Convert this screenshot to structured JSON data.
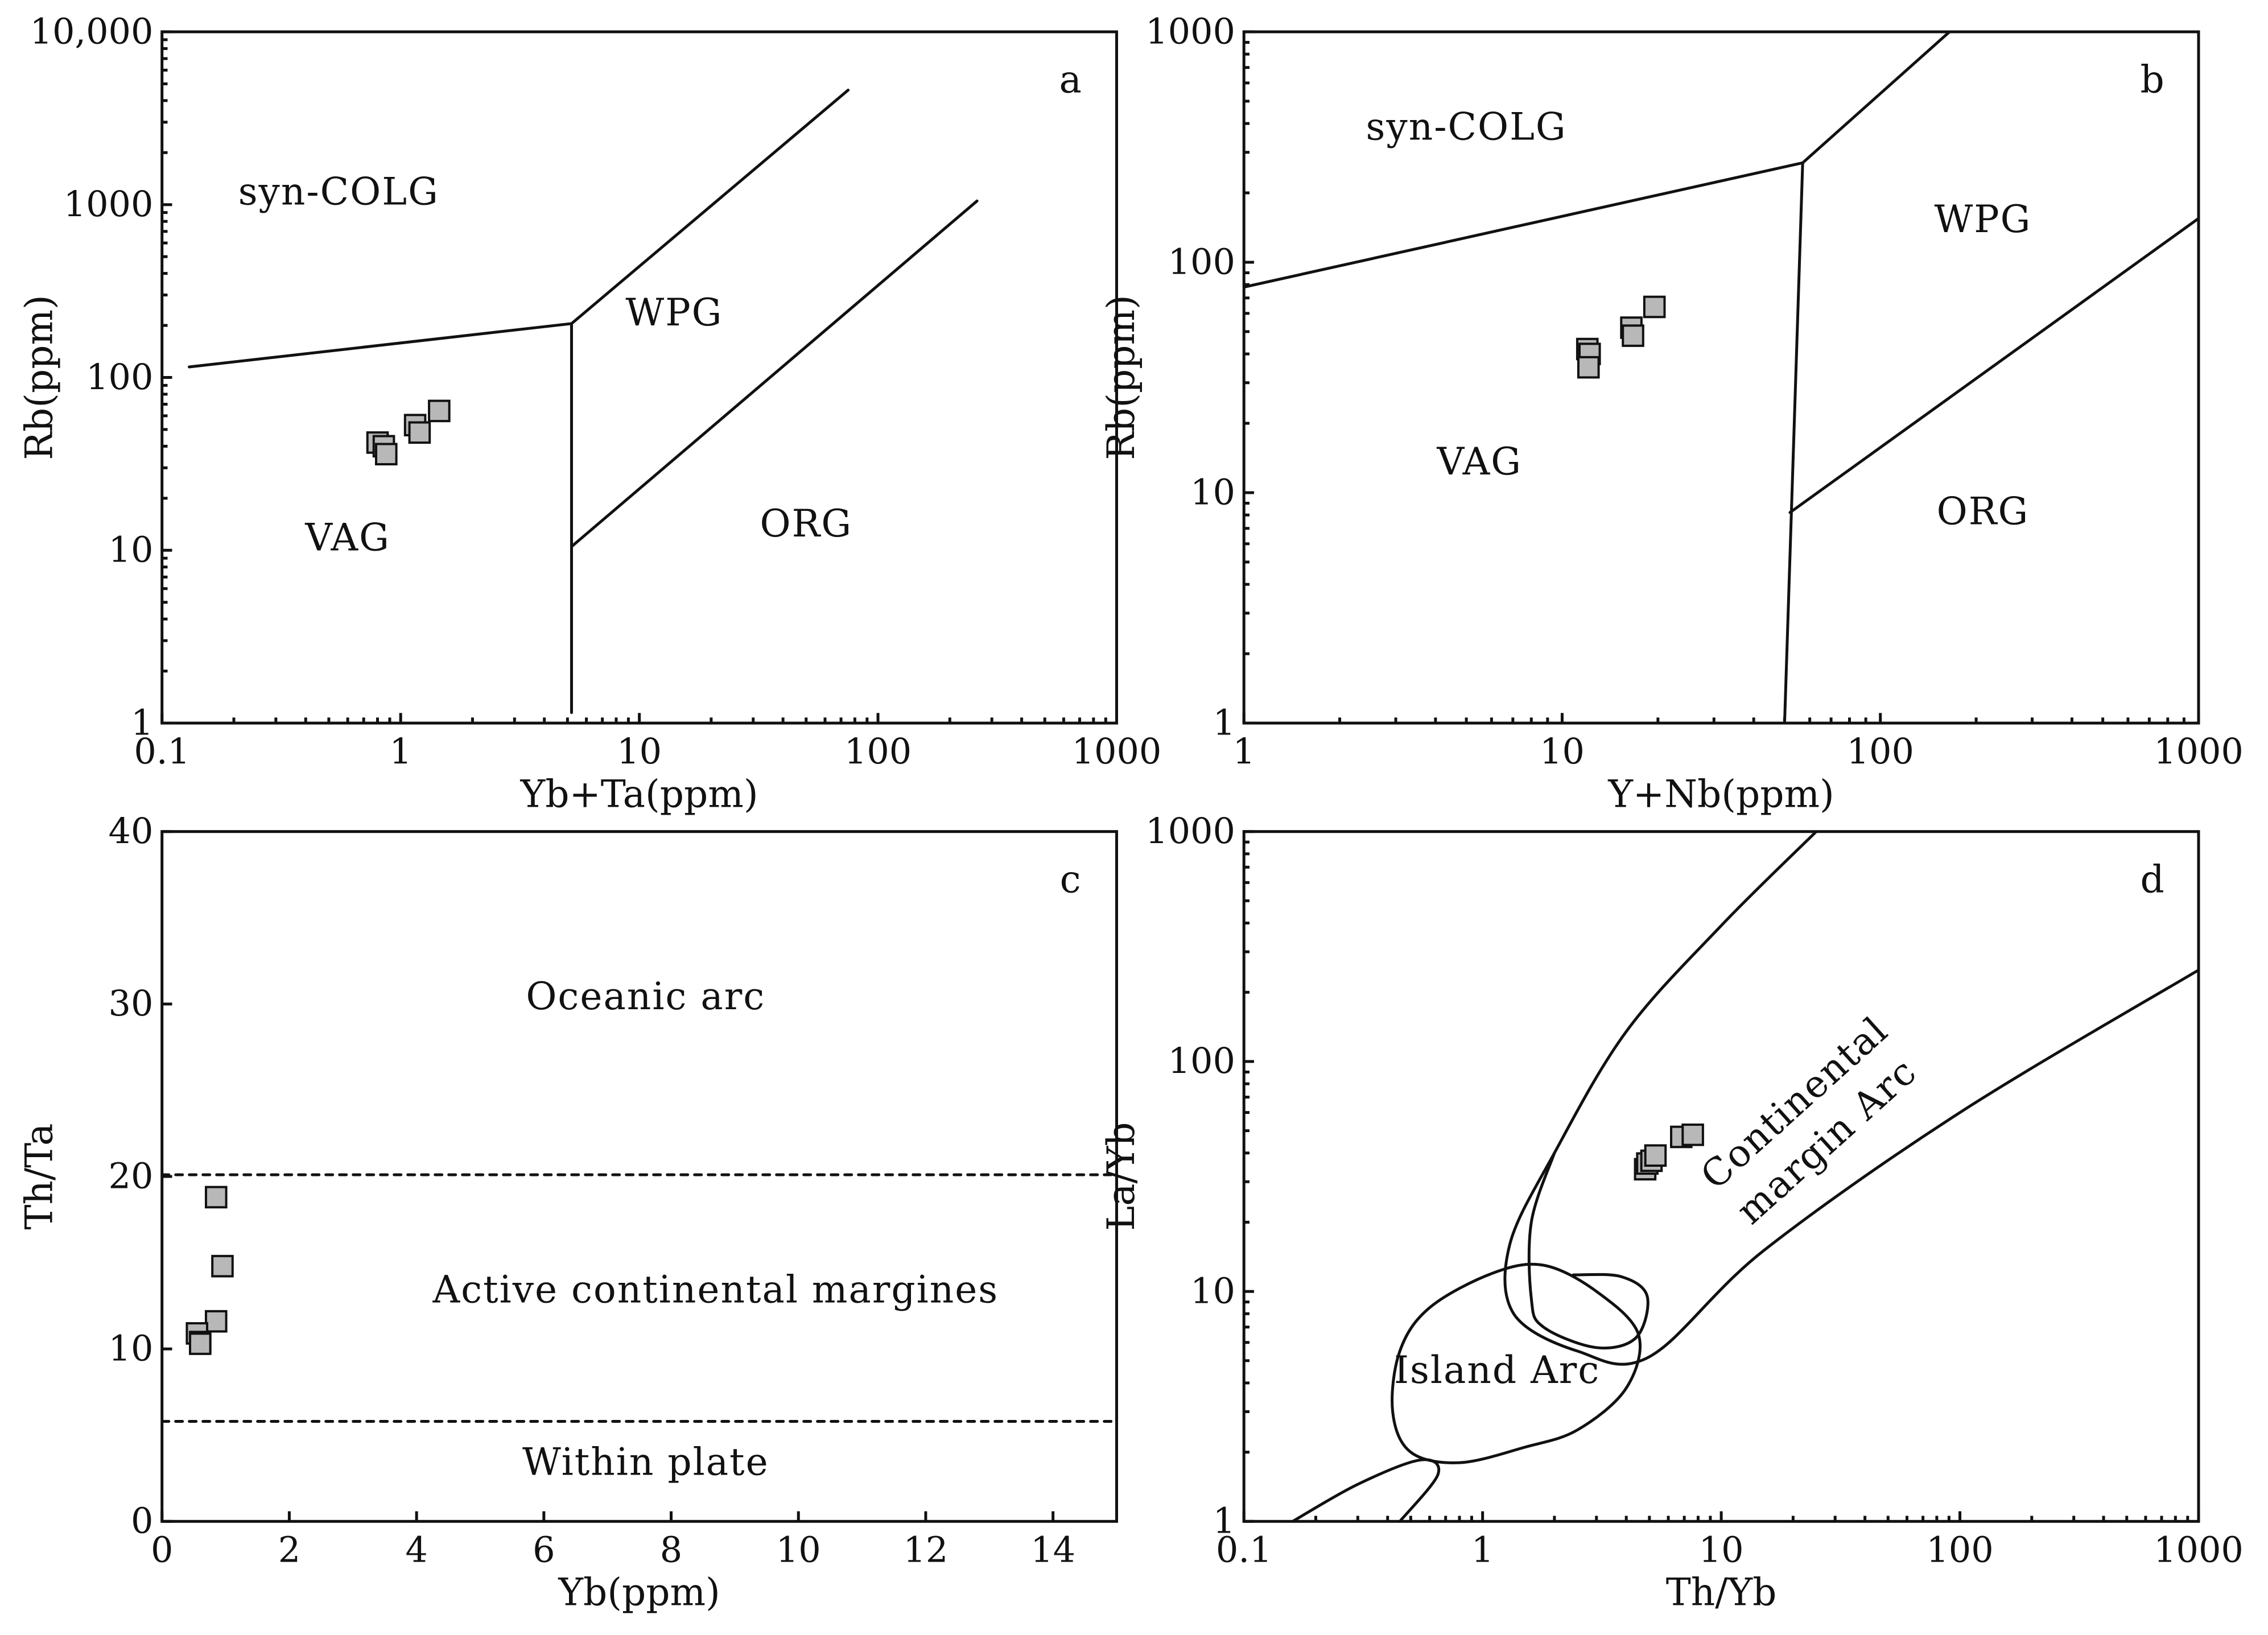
{
  "chart_data": [
    {
      "id": "a",
      "type": "scatter",
      "panel_label": "a",
      "xlabel": "Yb+Ta(ppm)",
      "ylabel": "Rb(ppm)",
      "xscale": "log",
      "yscale": "log",
      "xlim": [
        0.1,
        1000
      ],
      "ylim": [
        1,
        10000
      ],
      "xticks": [
        {
          "value": 0.1,
          "label": "0.1"
        },
        {
          "value": 1,
          "label": "1"
        },
        {
          "value": 10,
          "label": "10"
        },
        {
          "value": 100,
          "label": "100"
        },
        {
          "value": 1000,
          "label": "1000"
        }
      ],
      "yticks": [
        {
          "value": 1,
          "label": "1"
        },
        {
          "value": 10,
          "label": "10"
        },
        {
          "value": 100,
          "label": "100"
        },
        {
          "value": 1000,
          "label": "1000"
        },
        {
          "value": 10000,
          "label": "10,000"
        }
      ],
      "field_labels": [
        {
          "text": "syn-COLG",
          "x": 0.55,
          "y": 1000
        },
        {
          "text": "WPG",
          "x": 14,
          "y": 200
        },
        {
          "text": "VAG",
          "x": 0.6,
          "y": 10
        },
        {
          "text": "ORG",
          "x": 50,
          "y": 12
        }
      ],
      "boundaries": [
        {
          "style": "solid",
          "points": [
            [
              0.13,
              115
            ],
            [
              5.2,
              205
            ],
            [
              75,
              4600
            ]
          ]
        },
        {
          "style": "solid",
          "points": [
            [
              5.2,
              205
            ],
            [
              5.2,
              1.15
            ]
          ]
        },
        {
          "style": "solid",
          "points": [
            [
              5.2,
              10.5
            ],
            [
              260,
              1050
            ]
          ]
        }
      ],
      "series": [
        {
          "name": "samples",
          "marker": "square",
          "x": [
            0.8,
            0.85,
            0.87,
            1.15,
            1.2,
            1.45
          ],
          "y": [
            42,
            40,
            36,
            53,
            48,
            64
          ]
        }
      ]
    },
    {
      "id": "b",
      "type": "scatter",
      "panel_label": "b",
      "xlabel": "Y+Nb(ppm)",
      "ylabel": "Rb(ppm)",
      "xscale": "log",
      "yscale": "log",
      "xlim": [
        1,
        1000
      ],
      "ylim": [
        1,
        1000
      ],
      "xticks": [
        {
          "value": 1,
          "label": "1"
        },
        {
          "value": 10,
          "label": "10"
        },
        {
          "value": 100,
          "label": "100"
        },
        {
          "value": 1000,
          "label": "1000"
        }
      ],
      "yticks": [
        {
          "value": 1,
          "label": "1"
        },
        {
          "value": 10,
          "label": "10"
        },
        {
          "value": 100,
          "label": "100"
        },
        {
          "value": 1000,
          "label": "1000"
        }
      ],
      "field_labels": [
        {
          "text": "syn-COLG",
          "x": 5,
          "y": 340
        },
        {
          "text": "WPG",
          "x": 210,
          "y": 135
        },
        {
          "text": "VAG",
          "x": 5.5,
          "y": 12
        },
        {
          "text": "ORG",
          "x": 210,
          "y": 7.3
        }
      ],
      "boundaries": [
        {
          "style": "solid",
          "points": [
            [
              1,
              78
            ],
            [
              57,
              270
            ],
            [
              165,
              1000
            ]
          ]
        },
        {
          "style": "solid",
          "points": [
            [
              57,
              270
            ],
            [
              50,
              1
            ]
          ]
        },
        {
          "style": "solid",
          "points": [
            [
              52,
              8.2
            ],
            [
              1000,
              155
            ]
          ]
        }
      ],
      "series": [
        {
          "name": "samples",
          "marker": "square",
          "x": [
            12,
            12.2,
            12.1,
            16.5,
            16.7,
            19.5
          ],
          "y": [
            42,
            40,
            35,
            52,
            48,
            64
          ]
        }
      ]
    },
    {
      "id": "c",
      "type": "scatter",
      "panel_label": "c",
      "xlabel": "Yb(ppm)",
      "ylabel": "Th/Ta",
      "xscale": "linear",
      "yscale": "linear",
      "xlim": [
        0,
        15
      ],
      "ylim": [
        0,
        40
      ],
      "xticks": [
        {
          "value": 0,
          "label": "0"
        },
        {
          "value": 2,
          "label": "2"
        },
        {
          "value": 4,
          "label": "4"
        },
        {
          "value": 6,
          "label": "6"
        },
        {
          "value": 8,
          "label": "8"
        },
        {
          "value": 10,
          "label": "10"
        },
        {
          "value": 12,
          "label": "12"
        },
        {
          "value": 14,
          "label": "14"
        }
      ],
      "yticks": [
        {
          "value": 0,
          "label": "0"
        },
        {
          "value": 10,
          "label": "10"
        },
        {
          "value": 20,
          "label": "20"
        },
        {
          "value": 30,
          "label": "30"
        },
        {
          "value": 40,
          "label": "40"
        }
      ],
      "field_labels": [
        {
          "text": "Oceanic arc",
          "x": 7.6,
          "y": 29.7
        },
        {
          "text": "Active continental margines",
          "x": 8.7,
          "y": 12.7
        },
        {
          "text": "Within plate",
          "x": 7.6,
          "y": 2.7
        }
      ],
      "boundaries": [
        {
          "style": "dashed",
          "points": [
            [
              0,
              20.1
            ],
            [
              15,
              20.1
            ]
          ]
        },
        {
          "style": "dashed",
          "points": [
            [
              0,
              5.8
            ],
            [
              15,
              5.8
            ]
          ]
        }
      ],
      "series": [
        {
          "name": "samples",
          "marker": "square",
          "x": [
            0.85,
            0.95,
            0.85,
            0.55,
            0.6,
            0.6
          ],
          "y": [
            18.8,
            14.8,
            11.6,
            10.9,
            10.4,
            10.3
          ]
        }
      ]
    },
    {
      "id": "d",
      "type": "scatter",
      "panel_label": "d",
      "xlabel": "Th/Yb",
      "ylabel": "La/Yb",
      "xscale": "log",
      "yscale": "log",
      "xlim": [
        0.1,
        1000
      ],
      "ylim": [
        1,
        1000
      ],
      "xticks": [
        {
          "value": 0.1,
          "label": "0.1"
        },
        {
          "value": 1,
          "label": "1"
        },
        {
          "value": 10,
          "label": "10"
        },
        {
          "value": 100,
          "label": "100"
        },
        {
          "value": 1000,
          "label": "1000"
        }
      ],
      "yticks": [
        {
          "value": 1,
          "label": "1"
        },
        {
          "value": 10,
          "label": "10"
        },
        {
          "value": 100,
          "label": "100"
        },
        {
          "value": 1000,
          "label": "1000"
        }
      ],
      "field_labels": [
        {
          "text": "Island Arc",
          "x": 1.15,
          "y": 4.0,
          "rotation": 0
        },
        {
          "text": "Continental",
          "x": 22,
          "y": 60,
          "rotation": -42
        },
        {
          "text": "margin Arc",
          "x": 30,
          "y": 41,
          "rotation": -42
        }
      ],
      "boundaries": [
        {
          "style": "solid",
          "closed": false,
          "points": [
            [
              0.16,
              1
            ],
            [
              0.3,
              1.45
            ],
            [
              0.55,
              1.85
            ],
            [
              0.65,
              1.6
            ],
            [
              0.45,
              1
            ]
          ]
        },
        {
          "style": "solid",
          "closed": true,
          "points": [
            [
              0.8,
              1.8
            ],
            [
              0.5,
              2.0
            ],
            [
              0.42,
              3.0
            ],
            [
              0.45,
              5.5
            ],
            [
              0.6,
              8.5
            ],
            [
              1.1,
              12
            ],
            [
              1.8,
              13
            ],
            [
              3.0,
              10
            ],
            [
              4.5,
              6.5
            ],
            [
              4.0,
              3.8
            ],
            [
              2.5,
              2.5
            ],
            [
              1.5,
              2.1
            ]
          ]
        },
        {
          "style": "solid",
          "closed": false,
          "points": [
            [
              25,
              1000
            ],
            [
              10,
              390
            ],
            [
              4,
              135
            ],
            [
              2,
              40
            ],
            [
              1.3,
              16
            ],
            [
              1.35,
              8
            ],
            [
              2.5,
              5.5
            ],
            [
              5,
              5.2
            ],
            [
              15,
              15
            ],
            [
              100,
              60
            ],
            [
              1000,
              250
            ]
          ]
        },
        {
          "style": "solid",
          "closed": false,
          "points": [
            [
              2,
              40
            ],
            [
              1.6,
              20
            ],
            [
              1.6,
              9.3
            ],
            [
              1.8,
              7.0
            ],
            [
              3.0,
              5.7
            ],
            [
              4.4,
              6.3
            ],
            [
              4.9,
              9.5
            ],
            [
              3.8,
              11.6
            ],
            [
              2.4,
              11.8
            ]
          ]
        }
      ],
      "series": [
        {
          "name": "samples",
          "marker": "square",
          "x": [
            4.8,
            4.9,
            5.1,
            5.3,
            6.8,
            7.6
          ],
          "y": [
            34,
            36,
            37,
            39,
            47,
            48
          ]
        }
      ]
    }
  ]
}
